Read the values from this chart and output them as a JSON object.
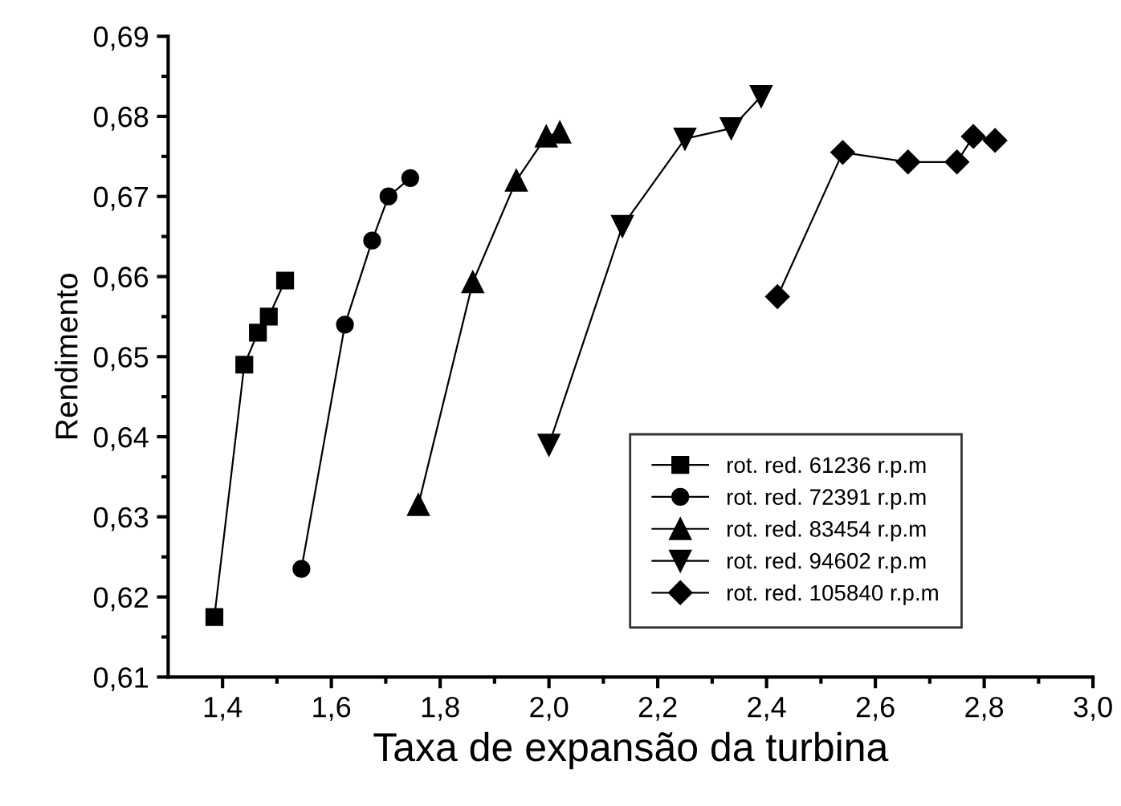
{
  "chart_data": {
    "type": "line",
    "xlabel": "Taxa de expansão da turbina",
    "ylabel": "Rendimento",
    "xlim": [
      1.3,
      3.0
    ],
    "ylim": [
      0.61,
      0.69
    ],
    "xticks": [
      {
        "value": 1.4,
        "label": "1,4"
      },
      {
        "value": 1.5,
        "label": null
      },
      {
        "value": 1.6,
        "label": "1,6"
      },
      {
        "value": 1.7,
        "label": null
      },
      {
        "value": 1.8,
        "label": "1,8"
      },
      {
        "value": 1.9,
        "label": null
      },
      {
        "value": 2.0,
        "label": "2,0"
      },
      {
        "value": 2.1,
        "label": null
      },
      {
        "value": 2.2,
        "label": "2,2"
      },
      {
        "value": 2.3,
        "label": null
      },
      {
        "value": 2.4,
        "label": "2,4"
      },
      {
        "value": 2.5,
        "label": null
      },
      {
        "value": 2.6,
        "label": "2,6"
      },
      {
        "value": 2.7,
        "label": null
      },
      {
        "value": 2.8,
        "label": "2,8"
      },
      {
        "value": 2.9,
        "label": null
      },
      {
        "value": 3.0,
        "label": "3,0"
      }
    ],
    "yticks": [
      {
        "value": 0.61,
        "label": "0,61"
      },
      {
        "value": 0.615,
        "label": null
      },
      {
        "value": 0.62,
        "label": "0,62"
      },
      {
        "value": 0.625,
        "label": null
      },
      {
        "value": 0.63,
        "label": "0,63"
      },
      {
        "value": 0.635,
        "label": null
      },
      {
        "value": 0.64,
        "label": "0,64"
      },
      {
        "value": 0.645,
        "label": null
      },
      {
        "value": 0.65,
        "label": "0,65"
      },
      {
        "value": 0.655,
        "label": null
      },
      {
        "value": 0.66,
        "label": "0,66"
      },
      {
        "value": 0.665,
        "label": null
      },
      {
        "value": 0.67,
        "label": "0,67"
      },
      {
        "value": 0.675,
        "label": null
      },
      {
        "value": 0.68,
        "label": "0,68"
      },
      {
        "value": 0.685,
        "label": null
      },
      {
        "value": 0.69,
        "label": "0,69"
      }
    ],
    "grid": false,
    "legend": "bottom right",
    "line_style": "solid",
    "series": [
      {
        "name": "rot. red. 61236 r.p.m",
        "color": "#000000",
        "marker": "square",
        "x": [
          1.385,
          1.44,
          1.465,
          1.485,
          1.515
        ],
        "values": [
          0.6175,
          0.649,
          0.653,
          0.655,
          0.6595
        ]
      },
      {
        "name": "rot. red. 72391 r.p.m",
        "color": "#000000",
        "marker": "circle",
        "x": [
          1.545,
          1.625,
          1.675,
          1.705,
          1.745
        ],
        "values": [
          0.6235,
          0.654,
          0.6645,
          0.67,
          0.6723
        ]
      },
      {
        "name": "rot. red. 83454 r.p.m",
        "color": "#000000",
        "marker": "triangle",
        "x": [
          1.76,
          1.86,
          1.94,
          1.995,
          2.02
        ],
        "values": [
          0.6315,
          0.6593,
          0.672,
          0.6775,
          0.678
        ]
      },
      {
        "name": "rot. red. 94602 r.p.m",
        "color": "#000000",
        "marker": "triangle-down",
        "x": [
          2.0,
          2.135,
          2.25,
          2.335,
          2.39
        ],
        "values": [
          0.639,
          0.6663,
          0.6772,
          0.6785,
          0.6825
        ]
      },
      {
        "name": "rot. red. 105840 r.p.m",
        "color": "#000000",
        "marker": "diamond",
        "x": [
          2.42,
          2.54,
          2.66,
          2.75,
          2.78,
          2.82
        ],
        "values": [
          0.6575,
          0.6755,
          0.6743,
          0.6743,
          0.6775,
          0.677
        ]
      }
    ]
  }
}
